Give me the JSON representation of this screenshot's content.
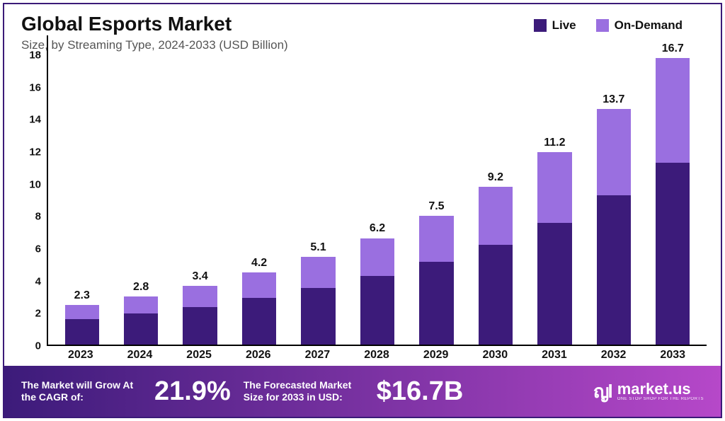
{
  "header": {
    "title": "Global Esports Market",
    "subtitle": "Size, by Streaming Type, 2024-2033 (USD Billion)"
  },
  "legend": {
    "items": [
      {
        "label": "Live",
        "color": "#3c1b7a"
      },
      {
        "label": "On-Demand",
        "color": "#9a6fe0"
      }
    ]
  },
  "chart": {
    "type": "stacked-bar",
    "background_color": "#ffffff",
    "axis_color": "#000000",
    "ylim": [
      0,
      18
    ],
    "ytick_step": 2,
    "yticks": [
      0,
      2,
      4,
      6,
      8,
      10,
      12,
      14,
      16,
      18
    ],
    "tick_fontsize": 15,
    "tick_fontweight": 700,
    "xlabel_fontsize": 16,
    "xlabel_fontweight": 800,
    "bar_width": 0.58,
    "value_label_fontsize": 16,
    "categories": [
      "2023",
      "2024",
      "2025",
      "2026",
      "2027",
      "2028",
      "2029",
      "2030",
      "2031",
      "2032",
      "2033"
    ],
    "totals": [
      2.3,
      2.8,
      3.4,
      4.2,
      5.1,
      6.2,
      7.5,
      9.2,
      11.2,
      13.7,
      16.7
    ],
    "series": [
      {
        "name": "Live",
        "color": "#3c1b7a",
        "values": [
          1.5,
          1.8,
          2.2,
          2.7,
          3.3,
          4.0,
          4.8,
          5.8,
          7.1,
          8.7,
          10.6
        ]
      },
      {
        "name": "On-Demand",
        "color": "#9a6fe0",
        "values": [
          0.8,
          1.0,
          1.2,
          1.5,
          1.8,
          2.2,
          2.7,
          3.4,
          4.1,
          5.0,
          6.1
        ]
      }
    ]
  },
  "footer": {
    "gradient_from": "#3c1b7a",
    "gradient_to": "#b648c9",
    "cagr_label": "The Market will Grow At the CAGR of:",
    "cagr_value": "21.9%",
    "forecast_label": "The Forecasted Market Size for 2033 in USD:",
    "forecast_value": "$16.7B",
    "logo_mark": "ญl",
    "logo_name": "market.us",
    "logo_tagline": "ONE STOP SHOP FOR THE REPORTS"
  }
}
